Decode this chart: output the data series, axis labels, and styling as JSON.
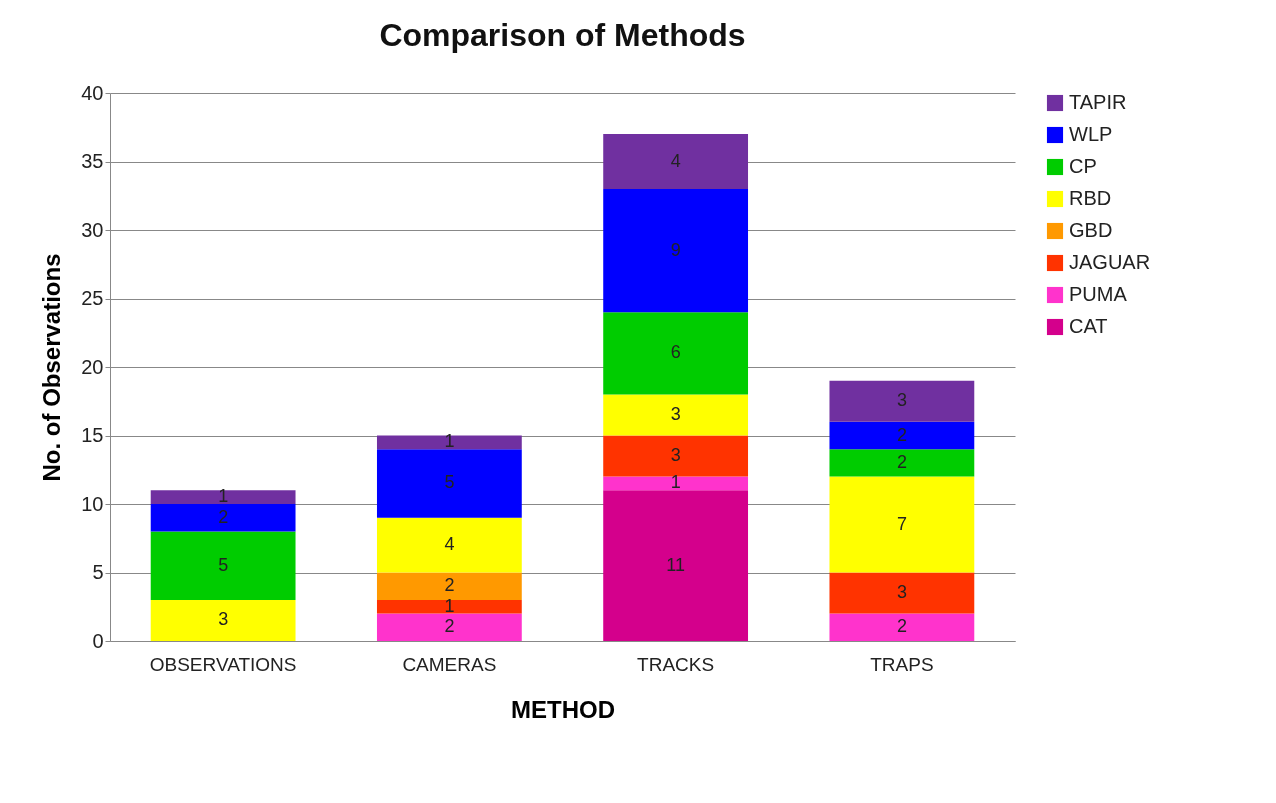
{
  "chart_data": {
    "type": "bar",
    "title": "Comparison of Methods",
    "xlabel": "METHOD",
    "ylabel": "No. of Observations",
    "categories": [
      "OBSERVATIONS",
      "CAMERAS",
      "TRACKS",
      "TRAPS"
    ],
    "stacked": true,
    "data_labels": true,
    "grid": "y",
    "legend": "right",
    "ylim": [
      0,
      40
    ],
    "yticks": [
      0,
      5,
      10,
      15,
      20,
      25,
      30,
      35,
      40
    ],
    "series": [
      {
        "name": "CAT",
        "color": "#d4008c",
        "values": [
          null,
          null,
          11,
          null
        ]
      },
      {
        "name": "PUMA",
        "color": "#ff33cc",
        "values": [
          null,
          2,
          1,
          2
        ]
      },
      {
        "name": "JAGUAR",
        "color": "#ff3300",
        "values": [
          null,
          1,
          3,
          3
        ]
      },
      {
        "name": "GBD",
        "color": "#ff9900",
        "values": [
          null,
          2,
          null,
          null
        ]
      },
      {
        "name": "RBD",
        "color": "#ffff00",
        "values": [
          3,
          4,
          3,
          7
        ]
      },
      {
        "name": "CP",
        "color": "#00cc00",
        "values": [
          5,
          null,
          6,
          2
        ]
      },
      {
        "name": "WLP",
        "color": "#0000ff",
        "values": [
          2,
          5,
          9,
          2
        ]
      },
      {
        "name": "TAPIR",
        "color": "#7030a0",
        "values": [
          1,
          1,
          4,
          3
        ]
      }
    ]
  }
}
